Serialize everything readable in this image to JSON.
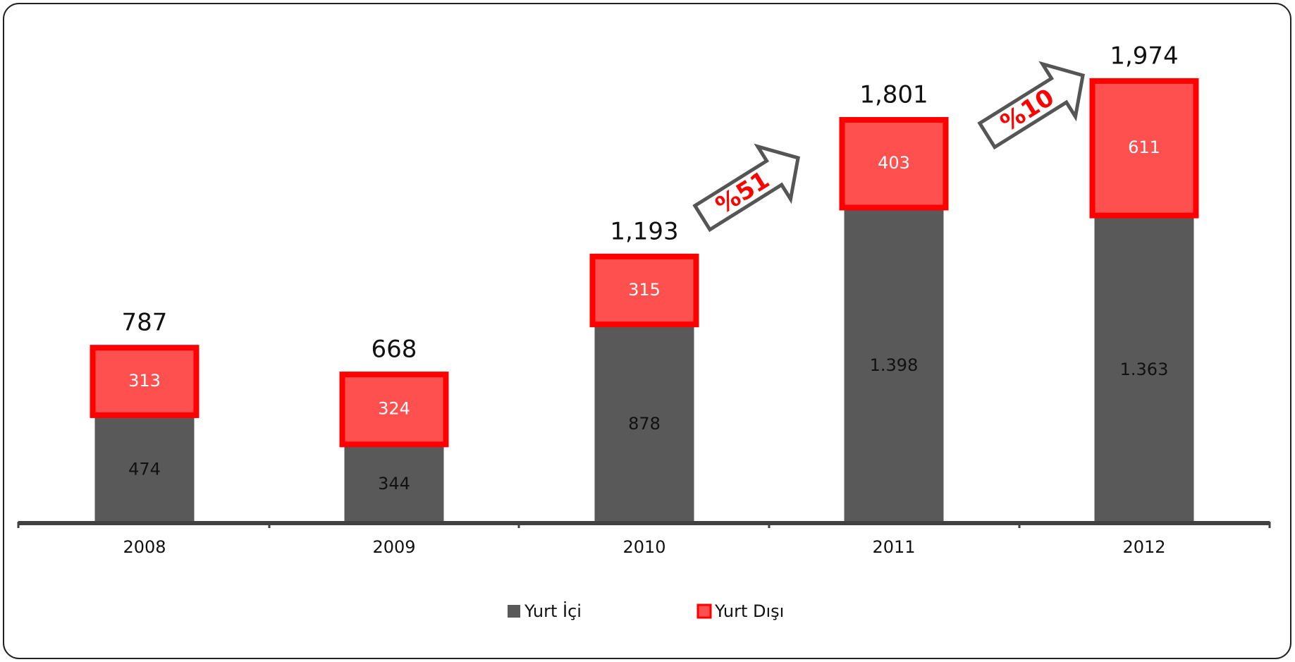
{
  "chart_data": {
    "type": "stacked-bar",
    "categories": [
      "2008",
      "2009",
      "2010",
      "2011",
      "2012"
    ],
    "series": [
      {
        "name": "Yurt İçi",
        "color": "#595959",
        "values": [
          474,
          344,
          878,
          1398,
          1363
        ],
        "value_labels": [
          "474",
          "344",
          "878",
          "1.398",
          "1.363"
        ]
      },
      {
        "name": "Yurt Dışı",
        "color": "#ff5050",
        "edge_color": "#ff0000",
        "values": [
          313,
          324,
          315,
          403,
          611
        ]
      }
    ],
    "totals": [
      787,
      668,
      1193,
      1801,
      1974
    ],
    "total_labels": [
      "787",
      "668",
      "1,193",
      "1,801",
      "1,974"
    ],
    "annotations": [
      "%51",
      "%10"
    ]
  }
}
